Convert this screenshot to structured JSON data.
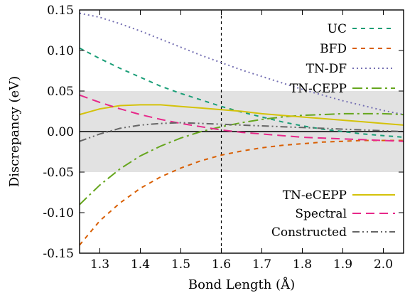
{
  "chart_data": {
    "type": "line",
    "title": "",
    "xlabel": "Bond Length (Å)",
    "ylabel": "Discrepancy (eV)",
    "xlim": [
      1.25,
      2.05
    ],
    "ylim": [
      -0.15,
      0.15
    ],
    "xticks": [
      1.3,
      1.4,
      1.5,
      1.6,
      1.7,
      1.8,
      1.9,
      2.0
    ],
    "xtick_labels": [
      "1.3",
      "1.4",
      "1.5",
      "1.6",
      "1.7",
      "1.8",
      "1.9",
      "2.0"
    ],
    "yticks": [
      -0.15,
      -0.1,
      -0.05,
      0.0,
      0.05,
      0.1,
      0.15
    ],
    "ytick_labels": [
      "-0.15",
      "-0.10",
      "-0.05",
      "0.00",
      "0.05",
      "0.10",
      "0.15"
    ],
    "shaded_band": [
      -0.05,
      0.05
    ],
    "vertical_line_x": 1.6,
    "grid": false,
    "legend_upper_placement": "top-right",
    "legend_lower_placement": "bottom-right",
    "series": [
      {
        "name": "UC",
        "color": "#1a9e77",
        "dash": "dash-short",
        "legend": "upper",
        "x": [
          1.25,
          1.3,
          1.35,
          1.4,
          1.45,
          1.5,
          1.55,
          1.6,
          1.65,
          1.7,
          1.75,
          1.8,
          1.85,
          1.9,
          1.95,
          2.0,
          2.05
        ],
        "y": [
          0.103,
          0.09,
          0.078,
          0.067,
          0.056,
          0.047,
          0.039,
          0.031,
          0.024,
          0.018,
          0.012,
          0.007,
          0.003,
          0.0,
          -0.003,
          -0.005,
          -0.007
        ]
      },
      {
        "name": "BFD",
        "color": "#d95f02",
        "dash": "dash-short",
        "legend": "upper",
        "x": [
          1.25,
          1.3,
          1.35,
          1.4,
          1.45,
          1.5,
          1.55,
          1.6,
          1.65,
          1.7,
          1.75,
          1.8,
          1.85,
          1.9,
          1.95,
          2.0,
          2.05
        ],
        "y": [
          -0.14,
          -0.11,
          -0.088,
          -0.07,
          -0.056,
          -0.045,
          -0.036,
          -0.029,
          -0.024,
          -0.02,
          -0.017,
          -0.015,
          -0.013,
          -0.012,
          -0.011,
          -0.011,
          -0.011
        ]
      },
      {
        "name": "TN-DF",
        "color": "#7570b3",
        "dash": "dot",
        "legend": "upper",
        "x": [
          1.25,
          1.3,
          1.35,
          1.4,
          1.45,
          1.5,
          1.55,
          1.6,
          1.65,
          1.7,
          1.75,
          1.8,
          1.85,
          1.9,
          1.95,
          2.0,
          2.05
        ],
        "y": [
          0.146,
          0.141,
          0.133,
          0.124,
          0.114,
          0.104,
          0.094,
          0.085,
          0.076,
          0.068,
          0.06,
          0.052,
          0.045,
          0.038,
          0.032,
          0.026,
          0.021
        ]
      },
      {
        "name": "TN-CEPP",
        "color": "#66a61e",
        "dash": "dash-dot",
        "legend": "upper",
        "x": [
          1.25,
          1.3,
          1.35,
          1.4,
          1.45,
          1.5,
          1.55,
          1.6,
          1.65,
          1.7,
          1.75,
          1.8,
          1.85,
          1.9,
          1.95,
          2.0,
          2.05
        ],
        "y": [
          -0.09,
          -0.066,
          -0.046,
          -0.03,
          -0.018,
          -0.008,
          0.0,
          0.006,
          0.011,
          0.015,
          0.018,
          0.02,
          0.021,
          0.022,
          0.022,
          0.022,
          0.021
        ]
      },
      {
        "name": "TN-eCEPP",
        "color": "#d4c20a",
        "dash": "solid",
        "legend": "lower",
        "x": [
          1.25,
          1.3,
          1.35,
          1.4,
          1.45,
          1.5,
          1.55,
          1.6,
          1.65,
          1.7,
          1.75,
          1.8,
          1.85,
          1.9,
          1.95,
          2.0,
          2.05
        ],
        "y": [
          0.021,
          0.028,
          0.032,
          0.033,
          0.033,
          0.031,
          0.029,
          0.027,
          0.025,
          0.022,
          0.02,
          0.018,
          0.016,
          0.014,
          0.012,
          0.01,
          0.008
        ]
      },
      {
        "name": "Spectral",
        "color": "#e7298a",
        "dash": "dash-long",
        "legend": "lower",
        "x": [
          1.25,
          1.3,
          1.35,
          1.4,
          1.45,
          1.5,
          1.55,
          1.6,
          1.65,
          1.7,
          1.75,
          1.8,
          1.85,
          1.9,
          1.95,
          2.0,
          2.05
        ],
        "y": [
          0.045,
          0.036,
          0.028,
          0.021,
          0.015,
          0.01,
          0.006,
          0.002,
          -0.001,
          -0.003,
          -0.005,
          -0.007,
          -0.008,
          -0.009,
          -0.01,
          -0.011,
          -0.012
        ]
      },
      {
        "name": "Constructed",
        "color": "#666666",
        "dash": "dash-dot-dot",
        "legend": "lower",
        "x": [
          1.25,
          1.3,
          1.35,
          1.4,
          1.45,
          1.5,
          1.55,
          1.6,
          1.65,
          1.7,
          1.75,
          1.8,
          1.85,
          1.9,
          1.95,
          2.0,
          2.05
        ],
        "y": [
          -0.012,
          -0.003,
          0.004,
          0.008,
          0.01,
          0.011,
          0.01,
          0.009,
          0.008,
          0.007,
          0.006,
          0.005,
          0.004,
          0.003,
          0.002,
          0.001,
          0.0
        ]
      }
    ]
  }
}
